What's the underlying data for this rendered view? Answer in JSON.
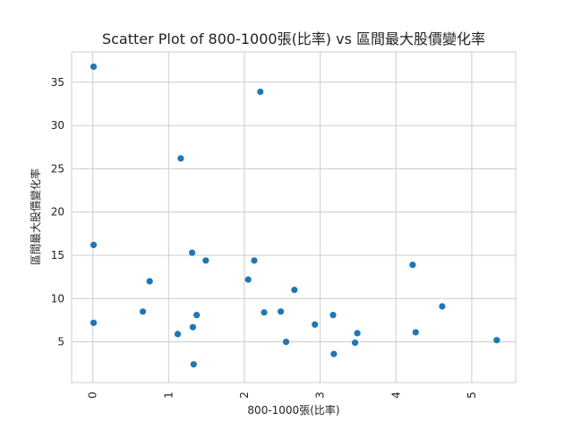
{
  "chart_data": {
    "type": "scatter",
    "title": "Scatter Plot of 800-1000張(比率) vs 區間最大股價變化率",
    "xlabel": "800-1000張(比率)",
    "ylabel": "區間最大股價變化率",
    "xlim": [
      -0.28,
      5.58
    ],
    "ylim": [
      0.3,
      38.5
    ],
    "xticks": [
      0,
      1,
      2,
      3,
      4,
      5
    ],
    "yticks": [
      5,
      10,
      15,
      20,
      25,
      30,
      35
    ],
    "grid": true,
    "point_color": "#1f77b4",
    "points": [
      {
        "x": 0.01,
        "y": 36.8
      },
      {
        "x": 0.01,
        "y": 16.2
      },
      {
        "x": 0.01,
        "y": 7.2
      },
      {
        "x": 0.66,
        "y": 8.5
      },
      {
        "x": 0.75,
        "y": 12.0
      },
      {
        "x": 1.12,
        "y": 5.9
      },
      {
        "x": 1.16,
        "y": 26.2
      },
      {
        "x": 1.31,
        "y": 15.3
      },
      {
        "x": 1.32,
        "y": 6.7
      },
      {
        "x": 1.33,
        "y": 2.4
      },
      {
        "x": 1.37,
        "y": 8.1
      },
      {
        "x": 1.49,
        "y": 14.4
      },
      {
        "x": 2.05,
        "y": 12.2
      },
      {
        "x": 2.13,
        "y": 14.4
      },
      {
        "x": 2.21,
        "y": 33.9
      },
      {
        "x": 2.26,
        "y": 8.4
      },
      {
        "x": 2.48,
        "y": 8.5
      },
      {
        "x": 2.55,
        "y": 5.0
      },
      {
        "x": 2.66,
        "y": 11.0
      },
      {
        "x": 2.93,
        "y": 7.0
      },
      {
        "x": 3.17,
        "y": 8.1
      },
      {
        "x": 3.18,
        "y": 3.6
      },
      {
        "x": 3.46,
        "y": 4.9
      },
      {
        "x": 3.49,
        "y": 6.0
      },
      {
        "x": 4.22,
        "y": 13.9
      },
      {
        "x": 4.26,
        "y": 6.1
      },
      {
        "x": 4.61,
        "y": 9.1
      },
      {
        "x": 5.33,
        "y": 5.2
      }
    ]
  }
}
